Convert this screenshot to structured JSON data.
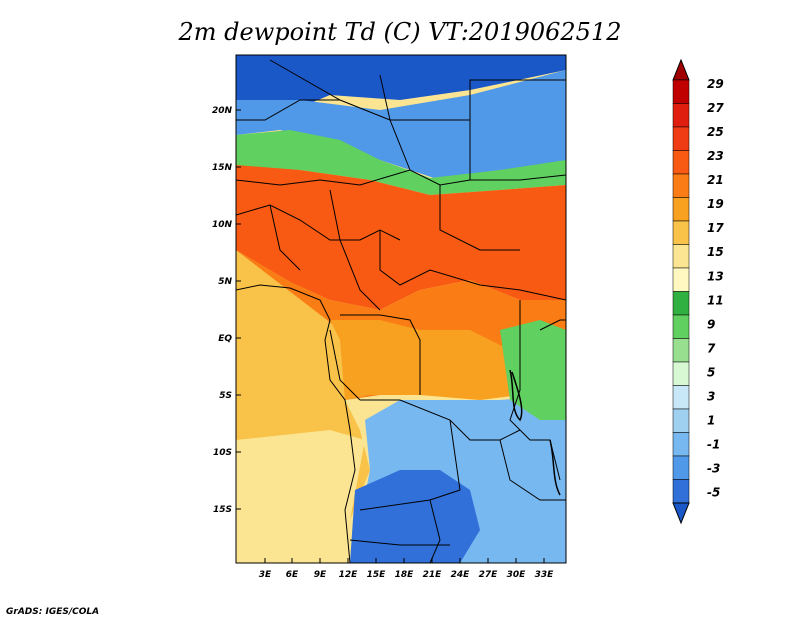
{
  "title": "2m dewpoint Td (C) VT:2019062512",
  "credit": "GrADS: IGES/COLA",
  "lat_ticks": [
    "20N",
    "15N",
    "10N",
    "5N",
    "EQ",
    "5S",
    "10S",
    "15S"
  ],
  "lon_ticks": [
    "3E",
    "6E",
    "9E",
    "12E",
    "15E",
    "18E",
    "21E",
    "24E",
    "27E",
    "30E",
    "33E"
  ],
  "colorbar": {
    "labels": [
      "29",
      "27",
      "25",
      "23",
      "21",
      "19",
      "17",
      "15",
      "13",
      "11",
      "9",
      "7",
      "5",
      "3",
      "1",
      "-1",
      "-3",
      "-5"
    ],
    "colors": [
      "#a00000",
      "#c00000",
      "#e01e10",
      "#f03c14",
      "#f85a14",
      "#fa7c14",
      "#f8a020",
      "#f9c34a",
      "#fbe592",
      "#fff8c0",
      "#30b040",
      "#60d060",
      "#98e090",
      "#d8f8d4",
      "#c8e8f8",
      "#a0d0f0",
      "#78b8f0",
      "#5098e8",
      "#3070d8",
      "#1a58c8"
    ],
    "arrow_top_color": "#a00000",
    "arrow_bottom_color": "#1a58c8"
  },
  "map_colors": {
    "ocean_south": "#fbe592",
    "ocean_gulf": "#f9c34a",
    "sahara": "#5098e8",
    "sahara_dark": "#1a58c8",
    "sahel_green": "#60d060",
    "west_africa": "#f85a14",
    "central": "#fa7c14",
    "congo": "#f8a020",
    "south_blue": "#78b8f0",
    "south_dark": "#3070d8",
    "border": "#000000"
  }
}
